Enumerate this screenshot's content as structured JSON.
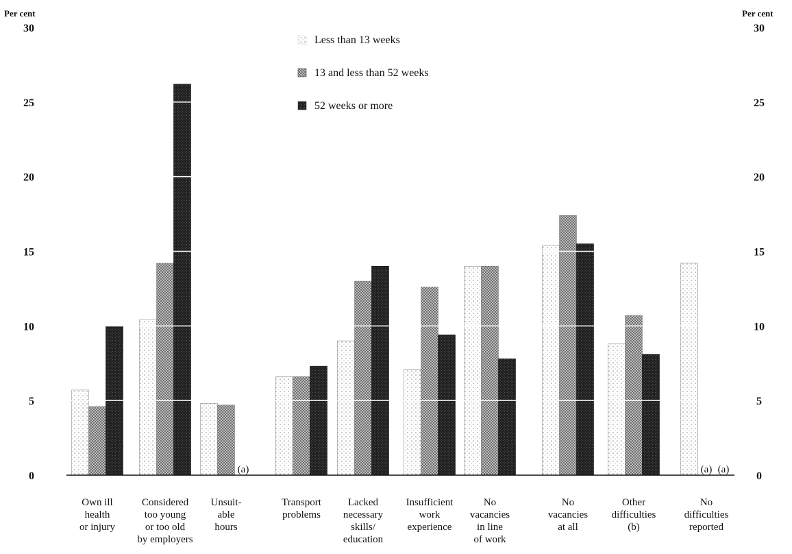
{
  "chart_data": {
    "type": "bar",
    "title": "",
    "xlabel": "",
    "ylabel_left": "Per cent",
    "ylabel_right": "Per cent",
    "ylim": [
      0,
      30
    ],
    "yticks": [
      0,
      5,
      10,
      15,
      20,
      25,
      30
    ],
    "legend_position": "top-center",
    "grid": false,
    "categories": [
      "Own ill health or injury",
      "Considered too young or too old by employers",
      "Unsuit- able hours",
      "Transport problems",
      "Lacked necessary skills/ education",
      "Insufficient work experience",
      "No vacancies in line of work",
      "No vacancies at all",
      "Other difficulties (b)",
      "No difficulties reported"
    ],
    "category_lines": [
      [
        "Own ill",
        "health",
        "or injury"
      ],
      [
        "Considered",
        "too young",
        "or too old",
        "by employers"
      ],
      [
        "Unsuit-",
        "able",
        "hours"
      ],
      [
        "Transport",
        "problems"
      ],
      [
        "Lacked",
        "necessary",
        "skills/",
        "education"
      ],
      [
        "Insufficient",
        "work",
        "experience"
      ],
      [
        "No",
        "vacancies",
        "in line",
        "of work"
      ],
      [
        "No",
        "vacancies",
        "at all"
      ],
      [
        "Other",
        "difficulties",
        "(b)"
      ],
      [
        "No",
        "difficulties",
        "reported"
      ]
    ],
    "series": [
      {
        "name": "Less than 13 weeks",
        "color": "#d9d9d9",
        "values": [
          5.7,
          10.4,
          4.8,
          6.6,
          9.0,
          7.1,
          14.0,
          15.4,
          8.8,
          14.2
        ]
      },
      {
        "name": "13 and less than 52 weeks",
        "color": "#9a9a9a",
        "values": [
          4.6,
          14.2,
          4.7,
          6.6,
          13.0,
          12.6,
          14.0,
          17.4,
          10.7,
          null
        ]
      },
      {
        "name": "52 weeks or more",
        "color": "#3a3a3a",
        "values": [
          10.0,
          26.2,
          null,
          7.3,
          14.0,
          9.4,
          7.8,
          15.5,
          8.1,
          null
        ]
      }
    ],
    "annotations": {
      "cat_2_series_2": "(a)",
      "cat_9_series_1": "(a)",
      "cat_9_series_2": "(a)"
    }
  }
}
